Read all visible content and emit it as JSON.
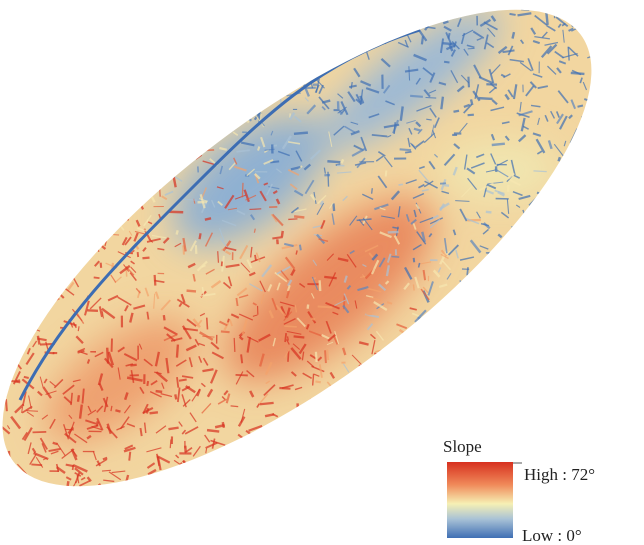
{
  "legend": {
    "title": "Slope",
    "high": "High : 72°",
    "low": "Low : 0°"
  }
}
